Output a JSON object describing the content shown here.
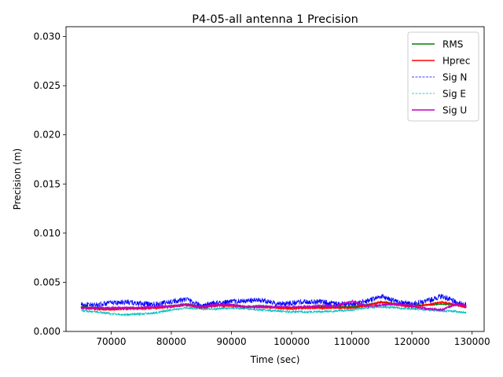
{
  "chart_data": {
    "type": "line",
    "title": "P4-05-all antenna 1 Precision",
    "xlabel": "Time (sec)",
    "ylabel": "Precision (m)",
    "xlim": [
      62500,
      132000
    ],
    "ylim": [
      0.0,
      0.031
    ],
    "x_ticks": [
      70000,
      80000,
      90000,
      100000,
      110000,
      120000,
      130000
    ],
    "x_tick_labels": [
      "70000",
      "80000",
      "90000",
      "100000",
      "110000",
      "120000",
      "130000"
    ],
    "y_ticks": [
      0.0,
      0.005,
      0.01,
      0.015,
      0.02,
      0.025,
      0.03
    ],
    "y_tick_labels": [
      "0.000",
      "0.005",
      "0.010",
      "0.015",
      "0.020",
      "0.025",
      "0.030"
    ],
    "grid": false,
    "legend_position": "top-right",
    "x": [
      65000,
      67500,
      70000,
      72500,
      75000,
      77500,
      80000,
      82500,
      85000,
      87500,
      90000,
      92500,
      95000,
      97500,
      100000,
      102500,
      105000,
      107500,
      110000,
      112500,
      115000,
      117500,
      120000,
      122500,
      125000,
      127500,
      129000
    ],
    "series": [
      {
        "name": "RMS",
        "color": "#008000",
        "style": "solid",
        "values": [
          0.0025,
          0.0024,
          0.0023,
          0.0024,
          0.0024,
          0.0024,
          0.0026,
          0.0028,
          0.0025,
          0.0027,
          0.0027,
          0.0025,
          0.0026,
          0.0025,
          0.0024,
          0.0025,
          0.0025,
          0.0025,
          0.0025,
          0.0027,
          0.003,
          0.0028,
          0.0026,
          0.0027,
          0.0028,
          0.0027,
          0.0025
        ]
      },
      {
        "name": "Hprec",
        "color": "#ff0000",
        "style": "solid",
        "values": [
          0.0024,
          0.0023,
          0.0022,
          0.0023,
          0.0023,
          0.0024,
          0.0025,
          0.0027,
          0.0024,
          0.0026,
          0.0026,
          0.0025,
          0.0025,
          0.0024,
          0.0023,
          0.0024,
          0.0024,
          0.0024,
          0.0024,
          0.0026,
          0.003,
          0.0027,
          0.0025,
          0.0027,
          0.003,
          0.0027,
          0.0024
        ]
      },
      {
        "name": "Sig N",
        "color": "#0000ff",
        "style": "dashed",
        "values": [
          0.0027,
          0.0027,
          0.0029,
          0.003,
          0.0028,
          0.0028,
          0.003,
          0.0033,
          0.0026,
          0.0029,
          0.003,
          0.0031,
          0.0032,
          0.0028,
          0.0029,
          0.003,
          0.003,
          0.0028,
          0.0027,
          0.0031,
          0.0036,
          0.003,
          0.0028,
          0.0031,
          0.0036,
          0.0029,
          0.0027
        ]
      },
      {
        "name": "Sig E",
        "color": "#00bfbf",
        "style": "dashed",
        "values": [
          0.0021,
          0.002,
          0.0018,
          0.0017,
          0.0018,
          0.0019,
          0.0022,
          0.0024,
          0.0023,
          0.0023,
          0.0024,
          0.0023,
          0.0022,
          0.0021,
          0.002,
          0.002,
          0.002,
          0.0021,
          0.0022,
          0.0024,
          0.0025,
          0.0024,
          0.0023,
          0.0022,
          0.0021,
          0.002,
          0.0019
        ]
      },
      {
        "name": "Sig U",
        "color": "#bf00bf",
        "style": "solid",
        "values": [
          0.0024,
          0.0024,
          0.0024,
          0.0024,
          0.0024,
          0.0025,
          0.0026,
          0.0027,
          0.0025,
          0.0027,
          0.0027,
          0.0025,
          0.0025,
          0.0025,
          0.0025,
          0.0025,
          0.0026,
          0.0026,
          0.0031,
          0.0026,
          0.0027,
          0.0028,
          0.0026,
          0.0023,
          0.0022,
          0.0028,
          0.0026
        ]
      }
    ]
  }
}
